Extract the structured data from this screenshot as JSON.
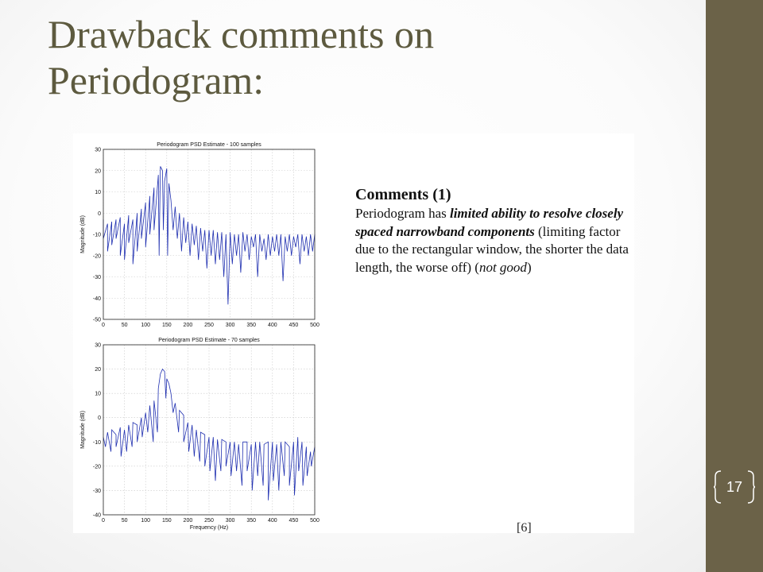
{
  "title": {
    "line1": "Drawback comments on",
    "line2": "Periodogram:"
  },
  "slide_number": "17",
  "comments": {
    "heading": "Comments (1)",
    "intro": "Periodogram has ",
    "emph1": "limited ability to resolve closely spaced narrowband components",
    "mid": " (limiting factor due to the rectangular window, the shorter the data length, the worse off) (",
    "emph2": "not good",
    "end": ")"
  },
  "reference": "[6]",
  "colors": {
    "title": "#5d5a3f",
    "sidebar": "#6b6248",
    "trace": "#1f2fb0"
  },
  "chart_data": [
    {
      "type": "line",
      "title": "Periodogram PSD Estimate - 100 samples",
      "xlabel": "",
      "ylabel": "Magnitude (dB)",
      "xlim": [
        0,
        500
      ],
      "ylim": [
        -50,
        30
      ],
      "xticks": [
        0,
        50,
        100,
        150,
        200,
        250,
        300,
        350,
        400,
        450,
        500
      ],
      "yticks": [
        30,
        20,
        10,
        0,
        -10,
        -20,
        -30,
        -40,
        -50
      ],
      "series": [
        {
          "x": [
            0,
            10,
            20,
            30,
            40,
            50,
            60,
            70,
            80,
            90,
            100,
            110,
            120,
            130,
            135,
            140,
            145,
            150,
            155,
            160,
            170,
            180,
            190,
            200,
            210,
            220,
            230,
            240,
            250,
            260,
            270,
            280,
            290,
            300,
            310,
            320,
            330,
            340,
            350,
            360,
            370,
            380,
            390,
            400,
            410,
            420,
            430,
            440,
            450,
            460,
            470,
            480,
            490,
            500
          ],
          "y": [
            -3,
            -5,
            -4,
            -3,
            -2,
            -5,
            -1,
            -3,
            0,
            2,
            5,
            8,
            12,
            18,
            22,
            20,
            15,
            21,
            14,
            6,
            3,
            0,
            -2,
            -4,
            -5,
            -6,
            -7,
            -8,
            -8,
            -8,
            -9,
            -9,
            -10,
            -9,
            -10,
            -10,
            -9,
            -10,
            -11,
            -10,
            -10,
            -12,
            -10,
            -11,
            -10,
            -10,
            -11,
            -10,
            -11,
            -10,
            -10,
            -11,
            -10,
            -10
          ],
          "nulls": [
            [
              0,
              -12
            ],
            [
              10,
              -18
            ],
            [
              20,
              -15
            ],
            [
              30,
              -12
            ],
            [
              40,
              -20
            ],
            [
              50,
              -22
            ],
            [
              60,
              -14
            ],
            [
              70,
              -24
            ],
            [
              80,
              -18
            ],
            [
              90,
              -12
            ],
            [
              100,
              -16
            ],
            [
              110,
              -10
            ],
            [
              120,
              -8
            ],
            [
              132,
              -20
            ],
            [
              142,
              -8
            ],
            [
              152,
              -20
            ],
            [
              165,
              -8
            ],
            [
              175,
              -12
            ],
            [
              185,
              -18
            ],
            [
              195,
              -14
            ],
            [
              205,
              -20
            ],
            [
              215,
              -15
            ],
            [
              225,
              -22
            ],
            [
              235,
              -18
            ],
            [
              245,
              -26
            ],
            [
              255,
              -20
            ],
            [
              265,
              -24
            ],
            [
              275,
              -22
            ],
            [
              285,
              -30
            ],
            [
              295,
              -43
            ],
            [
              305,
              -24
            ],
            [
              315,
              -20
            ],
            [
              325,
              -28
            ],
            [
              335,
              -18
            ],
            [
              345,
              -22
            ],
            [
              355,
              -16
            ],
            [
              365,
              -30
            ],
            [
              375,
              -18
            ],
            [
              385,
              -22
            ],
            [
              395,
              -20
            ],
            [
              405,
              -18
            ],
            [
              415,
              -20
            ],
            [
              425,
              -32
            ],
            [
              435,
              -18
            ],
            [
              445,
              -20
            ],
            [
              455,
              -16
            ],
            [
              465,
              -24
            ],
            [
              475,
              -18
            ],
            [
              485,
              -20
            ],
            [
              495,
              -18
            ]
          ]
        }
      ]
    },
    {
      "type": "line",
      "title": "Periodogram PSD Estimate - 70 samples",
      "xlabel": "Frequency (Hz)",
      "ylabel": "Magnitude (dB)",
      "xlim": [
        0,
        500
      ],
      "ylim": [
        -40,
        30
      ],
      "xticks": [
        0,
        50,
        100,
        150,
        200,
        250,
        300,
        350,
        400,
        450,
        500
      ],
      "yticks": [
        30,
        20,
        10,
        0,
        -10,
        -20,
        -30,
        -40
      ],
      "series": [
        {
          "x": [
            0,
            10,
            20,
            30,
            40,
            50,
            60,
            70,
            80,
            90,
            100,
            110,
            120,
            130,
            135,
            140,
            145,
            150,
            155,
            160,
            170,
            180,
            190,
            200,
            210,
            220,
            230,
            240,
            250,
            260,
            270,
            280,
            290,
            300,
            310,
            320,
            330,
            340,
            350,
            360,
            370,
            380,
            390,
            400,
            410,
            420,
            430,
            440,
            450,
            460,
            470,
            480,
            490,
            500
          ],
          "y": [
            -8,
            -6,
            -5,
            -7,
            -4,
            -5,
            -3,
            -2,
            -3,
            0,
            2,
            5,
            7,
            12,
            18,
            20,
            19,
            16,
            14,
            10,
            6,
            3,
            1,
            -2,
            -3,
            -5,
            -6,
            -7,
            -8,
            -8,
            -9,
            -9,
            -10,
            -10,
            -10,
            -11,
            -10,
            -10,
            -11,
            -10,
            -10,
            -11,
            -10,
            -10,
            -11,
            -10,
            -10,
            -12,
            -10,
            -8,
            -10,
            -12,
            -14,
            -12
          ],
          "nulls": [
            [
              5,
              -12
            ],
            [
              18,
              -14
            ],
            [
              30,
              -12
            ],
            [
              42,
              -16
            ],
            [
              55,
              -14
            ],
            [
              68,
              -12
            ],
            [
              80,
              -10
            ],
            [
              92,
              -8
            ],
            [
              105,
              -6
            ],
            [
              118,
              -10
            ],
            [
              128,
              -6
            ],
            [
              148,
              8
            ],
            [
              165,
              2
            ],
            [
              178,
              -6
            ],
            [
              190,
              -10
            ],
            [
              202,
              -14
            ],
            [
              215,
              -16
            ],
            [
              228,
              -18
            ],
            [
              240,
              -20
            ],
            [
              252,
              -22
            ],
            [
              265,
              -26
            ],
            [
              278,
              -22
            ],
            [
              290,
              -20
            ],
            [
              302,
              -24
            ],
            [
              315,
              -22
            ],
            [
              328,
              -28
            ],
            [
              340,
              -22
            ],
            [
              352,
              -30
            ],
            [
              365,
              -24
            ],
            [
              378,
              -28
            ],
            [
              390,
              -34
            ],
            [
              402,
              -26
            ],
            [
              415,
              -30
            ],
            [
              428,
              -24
            ],
            [
              440,
              -28
            ],
            [
              452,
              -32
            ],
            [
              462,
              -22
            ],
            [
              472,
              -28
            ],
            [
              482,
              -24
            ],
            [
              492,
              -20
            ]
          ]
        }
      ]
    }
  ]
}
